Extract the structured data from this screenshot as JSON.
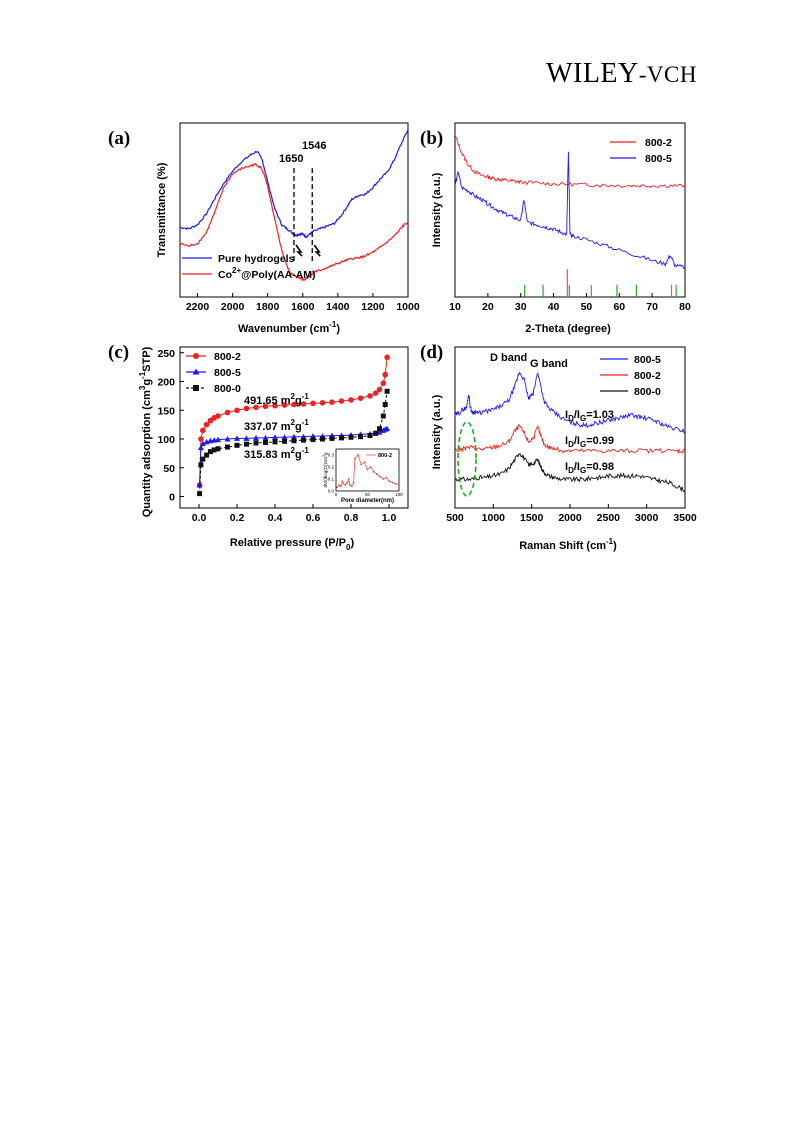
{
  "header": {
    "brand_main": "WILEY",
    "brand_suffix": "-VCH"
  },
  "chart_data": [
    {
      "panel": "(a)",
      "type": "line",
      "xlabel": "Wavenumber (cm",
      "xlabel_sup": "-1",
      "xlabel_end": ")",
      "ylabel": "Transmittance (%)",
      "xlim": [
        2300,
        1000
      ],
      "x_reversed": true,
      "xticks": [
        "2200",
        "2000",
        "1800",
        "1600",
        "1400",
        "1200",
        "1000"
      ],
      "series": [
        {
          "name": "Pure hydrogels",
          "color": "#1c1cf0",
          "x": [
            2300,
            2250,
            2200,
            2150,
            2100,
            2050,
            2000,
            1950,
            1900,
            1860,
            1830,
            1800,
            1760,
            1720,
            1690,
            1660,
            1640,
            1620,
            1600,
            1580,
            1560,
            1540,
            1500,
            1460,
            1420,
            1380,
            1350,
            1320,
            1280,
            1240,
            1200,
            1160,
            1120,
            1080,
            1040,
            1000
          ],
          "y": [
            0.22,
            0.21,
            0.24,
            0.32,
            0.44,
            0.55,
            0.64,
            0.71,
            0.76,
            0.79,
            0.72,
            0.56,
            0.36,
            0.24,
            0.21,
            0.18,
            0.16,
            0.17,
            0.17,
            0.15,
            0.17,
            0.19,
            0.21,
            0.23,
            0.25,
            0.31,
            0.37,
            0.43,
            0.46,
            0.47,
            0.52,
            0.58,
            0.63,
            0.72,
            0.84,
            0.95
          ]
        },
        {
          "name": "Co2+@Poly(AA-AM)",
          "color": "#ee2222",
          "x": [
            2300,
            2250,
            2200,
            2150,
            2100,
            2050,
            2000,
            1950,
            1900,
            1870,
            1840,
            1810,
            1780,
            1750,
            1720,
            1690,
            1670,
            1650,
            1630,
            1610,
            1590,
            1570,
            1550,
            1530,
            1500,
            1460,
            1420,
            1380,
            1340,
            1300,
            1260,
            1220,
            1180,
            1140,
            1100,
            1060,
            1030,
            1000
          ],
          "y": [
            0.1,
            0.08,
            0.1,
            0.18,
            0.34,
            0.52,
            0.62,
            0.66,
            0.68,
            0.69,
            0.67,
            0.58,
            0.4,
            0.22,
            0.05,
            -0.07,
            -0.12,
            -0.14,
            -0.15,
            -0.16,
            -0.17,
            -0.15,
            -0.13,
            -0.11,
            -0.1,
            -0.08,
            -0.06,
            -0.04,
            -0.02,
            -0.01,
            0.0,
            0.02,
            0.05,
            0.09,
            0.13,
            0.18,
            0.23,
            0.26
          ]
        }
      ],
      "annotations": [
        {
          "text": "1650",
          "x": 1650
        },
        {
          "text": "1546",
          "x": 1546
        }
      ],
      "legend_position": "bottom-left",
      "legend_name_co": "Co",
      "legend_name_sup": "2+",
      "legend_name_rest": "@Poly(AA-AM)"
    },
    {
      "panel": "(b)",
      "type": "line",
      "xlabel": "2-Theta (degree)",
      "ylabel": "Intensity (a.u.)",
      "xlim": [
        10,
        80
      ],
      "xticks": [
        "10",
        "20",
        "30",
        "40",
        "50",
        "60",
        "70",
        "80"
      ],
      "series": [
        {
          "name": "800-2",
          "color": "#ee2222",
          "x": [
            10,
            12,
            14,
            16,
            18,
            20,
            22,
            24,
            26,
            28,
            30,
            35,
            40,
            45,
            50,
            55,
            60,
            65,
            70,
            75,
            80
          ],
          "y": [
            0.93,
            0.83,
            0.76,
            0.72,
            0.7,
            0.69,
            0.68,
            0.675,
            0.67,
            0.665,
            0.66,
            0.655,
            0.65,
            0.648,
            0.645,
            0.643,
            0.64,
            0.64,
            0.64,
            0.64,
            0.64
          ]
        },
        {
          "name": "800-5",
          "color": "#1c1cf0",
          "x": [
            10,
            11,
            12,
            14,
            16,
            18,
            20,
            22,
            24,
            26,
            28,
            30,
            31,
            32,
            34,
            36,
            38,
            40,
            42,
            44,
            44.5,
            45,
            46,
            50,
            55,
            60,
            65,
            70,
            74,
            75.5,
            77,
            80
          ],
          "y": [
            0.64,
            0.72,
            0.63,
            0.61,
            0.58,
            0.56,
            0.535,
            0.51,
            0.49,
            0.47,
            0.455,
            0.44,
            0.56,
            0.43,
            0.42,
            0.41,
            0.4,
            0.39,
            0.375,
            0.36,
            0.83,
            0.36,
            0.35,
            0.33,
            0.3,
            0.27,
            0.24,
            0.21,
            0.19,
            0.24,
            0.18,
            0.17
          ]
        }
      ],
      "reference_lines": [
        {
          "color": "#22aa22",
          "x": [
            31.2,
            36.8,
            44.8,
            59.3,
            65.2,
            77.3
          ]
        },
        {
          "color": "#dd44dd",
          "x": [
            44.2,
            51.5,
            75.9
          ]
        }
      ],
      "legend_position": "top-right"
    },
    {
      "panel": "(c)",
      "type": "scatter",
      "xlabel": "Relative pressure (P/P",
      "xlabel_sub": "0",
      "xlabel_end": ")",
      "ylabel": "Quantity adsorption (cm",
      "ylabel_sup": "3",
      "ylabel_mid": "g",
      "ylabel_sup2": "-1",
      "ylabel_end": "STP)",
      "xlim": [
        -0.1,
        1.1
      ],
      "ylim": [
        -20,
        260
      ],
      "xticks": [
        "0.0",
        "0.2",
        "0.4",
        "0.6",
        "0.8",
        "1.0"
      ],
      "yticks": [
        "0",
        "50",
        "100",
        "150",
        "200",
        "250"
      ],
      "x": [
        0.003,
        0.01,
        0.02,
        0.04,
        0.06,
        0.08,
        0.1,
        0.15,
        0.2,
        0.25,
        0.3,
        0.35,
        0.4,
        0.45,
        0.5,
        0.55,
        0.6,
        0.65,
        0.7,
        0.75,
        0.8,
        0.85,
        0.9,
        0.93,
        0.95,
        0.97,
        0.98,
        0.99
      ],
      "series": [
        {
          "name": "800-2",
          "color": "#ee2222",
          "marker": "circle",
          "y": [
            20,
            100,
            115,
            125,
            132,
            137,
            140,
            146,
            150,
            153,
            155,
            157,
            158,
            159,
            160,
            161,
            162,
            163,
            164,
            166,
            168,
            171,
            175,
            180,
            186,
            197,
            212,
            242
          ]
        },
        {
          "name": "800-5",
          "color": "#1c1cf0",
          "marker": "triangle",
          "y": [
            20,
            85,
            92,
            95,
            97,
            98,
            99,
            100,
            101,
            101,
            102,
            102,
            103,
            103,
            104,
            104,
            105,
            105,
            106,
            106,
            107,
            108,
            109,
            110,
            112,
            115,
            117,
            118
          ]
        },
        {
          "name": "800-0",
          "color": "#111111",
          "marker": "square",
          "y": [
            5,
            55,
            65,
            72,
            78,
            81,
            83,
            86,
            89,
            91,
            93,
            94,
            95,
            96,
            97,
            98,
            99,
            100,
            101,
            102,
            103,
            104,
            106,
            110,
            118,
            140,
            160,
            183
          ]
        }
      ],
      "annotations": [
        {
          "value": "491.65 m",
          "sup": "2",
          "unit": "g",
          "unit_sup": "-1"
        },
        {
          "value": "337.07 m",
          "sup": "2",
          "unit": "g",
          "unit_sup": "-1"
        },
        {
          "value": "315.83 m",
          "sup": "2",
          "unit": "g",
          "unit_sup": "-1"
        }
      ],
      "inset": {
        "series_name": "800-2",
        "xlabel": "Pore diameter(nm)",
        "ylabel": "dV/(dlog(D))cm",
        "ylabel_sup": "3",
        "ylabel_end": "g",
        "xticks": [
          "0",
          "50",
          "100"
        ],
        "yticks": [
          "0.0",
          "0.1",
          "0.2",
          "0.3"
        ],
        "x": [
          2,
          5,
          8,
          10,
          12,
          15,
          18,
          20,
          22,
          25,
          28,
          30,
          35,
          40,
          45,
          50,
          55,
          60,
          65,
          70,
          75,
          80,
          85,
          90,
          95,
          100
        ],
        "y": [
          0.03,
          0.05,
          0.04,
          0.08,
          0.06,
          0.05,
          0.07,
          0.1,
          0.05,
          0.04,
          0.07,
          0.27,
          0.3,
          0.22,
          0.24,
          0.18,
          0.2,
          0.16,
          0.14,
          0.12,
          0.1,
          0.11,
          0.08,
          0.07,
          0.06,
          0.05
        ]
      },
      "legend_position": "top-left"
    },
    {
      "panel": "(d)",
      "type": "line",
      "xlabel": "Raman Shift (cm",
      "xlabel_sup": "-1",
      "xlabel_end": ")",
      "ylabel": "Intensity (a.u.)",
      "xlim": [
        500,
        3500
      ],
      "xticks": [
        "500",
        "1000",
        "1500",
        "2000",
        "2500",
        "3000",
        "3500"
      ],
      "series": [
        {
          "name": "800-5",
          "color": "#1c1cf0",
          "x": [
            500,
            550,
            600,
            650,
            680,
            700,
            730,
            760,
            800,
            900,
            1000,
            1100,
            1200,
            1280,
            1340,
            1400,
            1460,
            1520,
            1580,
            1620,
            1660,
            1720,
            1800,
            1900,
            2000,
            2100,
            2200,
            2300,
            2400,
            2500,
            2600,
            2700,
            2800,
            2900,
            3000,
            3100,
            3200,
            3300,
            3400,
            3500
          ],
          "y": [
            0.62,
            0.63,
            0.65,
            0.66,
            0.74,
            0.66,
            0.63,
            0.64,
            0.63,
            0.64,
            0.65,
            0.67,
            0.7,
            0.78,
            0.86,
            0.82,
            0.71,
            0.74,
            0.86,
            0.78,
            0.7,
            0.66,
            0.63,
            0.6,
            0.58,
            0.57,
            0.56,
            0.57,
            0.58,
            0.59,
            0.6,
            0.61,
            0.62,
            0.61,
            0.6,
            0.59,
            0.57,
            0.55,
            0.54,
            0.53
          ]
        },
        {
          "name": "800-2",
          "color": "#ee2222",
          "x": [
            500,
            600,
            700,
            800,
            900,
            1000,
            1100,
            1200,
            1280,
            1340,
            1400,
            1460,
            1520,
            1580,
            1620,
            1660,
            1720,
            1800,
            1900,
            2000,
            2200,
            2400,
            2600,
            2800,
            3000,
            3200,
            3400,
            3500
          ],
          "y": [
            0.42,
            0.43,
            0.44,
            0.43,
            0.43,
            0.44,
            0.45,
            0.47,
            0.53,
            0.56,
            0.52,
            0.47,
            0.49,
            0.55,
            0.5,
            0.46,
            0.44,
            0.43,
            0.42,
            0.42,
            0.42,
            0.42,
            0.42,
            0.42,
            0.42,
            0.42,
            0.42,
            0.42
          ]
        },
        {
          "name": "800-0",
          "color": "#111111",
          "x": [
            500,
            600,
            700,
            800,
            900,
            1000,
            1100,
            1200,
            1280,
            1340,
            1400,
            1460,
            1520,
            1580,
            1620,
            1660,
            1720,
            1800,
            1900,
            2000,
            2100,
            2200,
            2300,
            2400,
            2500,
            2600,
            2700,
            2800,
            2900,
            3000,
            3100,
            3200,
            3300,
            3400,
            3500
          ],
          "y": [
            0.26,
            0.26,
            0.26,
            0.27,
            0.27,
            0.28,
            0.29,
            0.32,
            0.37,
            0.41,
            0.38,
            0.34,
            0.35,
            0.37,
            0.33,
            0.3,
            0.28,
            0.27,
            0.26,
            0.26,
            0.26,
            0.26,
            0.27,
            0.27,
            0.28,
            0.28,
            0.28,
            0.28,
            0.28,
            0.27,
            0.26,
            0.25,
            0.24,
            0.22,
            0.2
          ]
        }
      ],
      "annotations": [
        {
          "text": "D band"
        },
        {
          "text": "G band"
        },
        {
          "pre": "I",
          "sub1": "D",
          "mid": "/I",
          "sub2": "G",
          "val": "=1.03"
        },
        {
          "pre": "I",
          "sub1": "D",
          "mid": "/I",
          "sub2": "G",
          "val": "=0.99"
        },
        {
          "pre": "I",
          "sub1": "D",
          "mid": "/I",
          "sub2": "G",
          "val": "=0.98"
        }
      ],
      "legend_position": "top-right"
    }
  ]
}
